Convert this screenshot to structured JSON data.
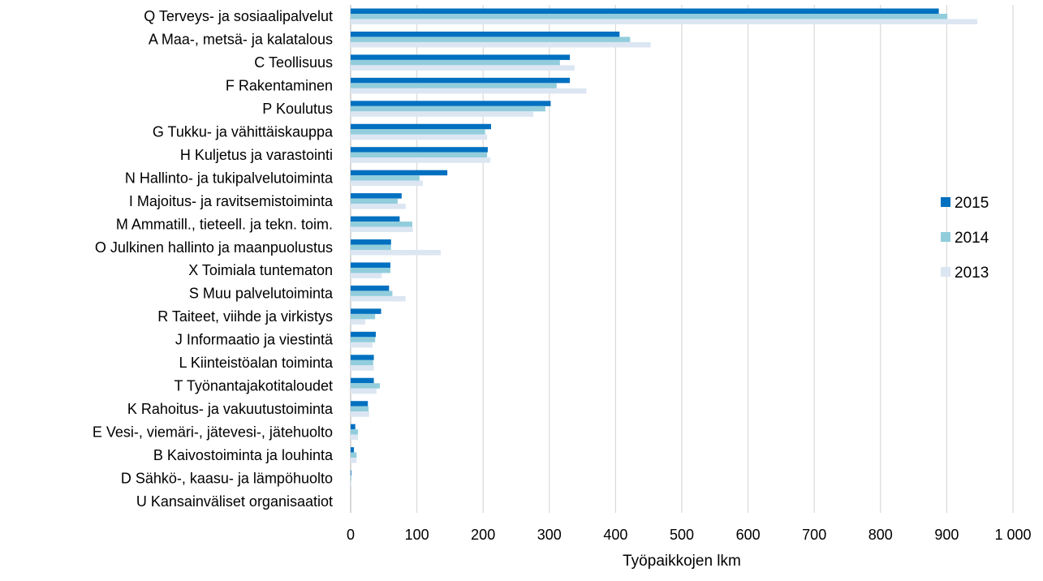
{
  "chart_data": {
    "type": "bar",
    "orientation": "horizontal",
    "title": "",
    "xlabel": "Työpaikkojen lkm",
    "ylabel": "",
    "xlim": [
      0,
      1000
    ],
    "xticks": [
      0,
      100,
      200,
      300,
      400,
      500,
      600,
      700,
      800,
      900,
      1000
    ],
    "xtick_labels": [
      "0",
      "100",
      "200",
      "300",
      "400",
      "500",
      "600",
      "700",
      "800",
      "900",
      "1 000"
    ],
    "grid": "vertical",
    "legend_position": "right",
    "categories": [
      "Q Terveys- ja sosiaalipalvelut",
      "A Maa-, metsä- ja kalatalous",
      "C Teollisuus",
      "F Rakentaminen",
      "P Koulutus",
      "G Tukku- ja vähittäiskauppa",
      "H Kuljetus ja varastointi",
      "N Hallinto- ja tukipalvelutoiminta",
      "I Majoitus- ja ravitsemistoiminta",
      "M Ammatill., tieteell. ja tekn. toim.",
      "O Julkinen hallinto ja maanpuolustus",
      "X Toimiala tuntematon",
      "S Muu palvelutoiminta",
      "R Taiteet, viihde ja virkistys",
      "J Informaatio ja viestintä",
      "L Kiinteistöalan toiminta",
      "T Työnantajakotitaloudet",
      "K Rahoitus- ja vakuutustoiminta",
      "E Vesi-, viemäri-,  jätevesi-, jätehuolto",
      "B Kaivostoiminta ja louhinta",
      "D Sähkö-, kaasu- ja lämpöhuolto",
      "U Kansainväliset organisaatiot"
    ],
    "series": [
      {
        "name": "2015",
        "color": "#0070c0",
        "values": [
          888,
          406,
          331,
          331,
          302,
          212,
          207,
          146,
          77,
          74,
          61,
          60,
          58,
          46,
          38,
          35,
          35,
          26,
          7,
          5,
          1,
          0
        ]
      },
      {
        "name": "2014",
        "color": "#92cddc",
        "values": [
          901,
          422,
          316,
          311,
          294,
          203,
          206,
          104,
          71,
          93,
          61,
          60,
          63,
          37,
          37,
          34,
          44,
          27,
          11,
          9,
          1,
          0
        ]
      },
      {
        "name": "2013",
        "color": "#dce6f2",
        "values": [
          946,
          453,
          338,
          356,
          276,
          206,
          211,
          109,
          83,
          94,
          136,
          47,
          83,
          22,
          33,
          35,
          39,
          28,
          11,
          9,
          1,
          0
        ]
      }
    ]
  }
}
